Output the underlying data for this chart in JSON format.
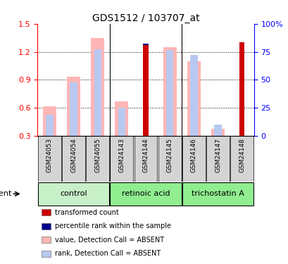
{
  "title": "GDS1512 / 103707_at",
  "samples": [
    "GSM24053",
    "GSM24054",
    "GSM24055",
    "GSM24143",
    "GSM24144",
    "GSM24145",
    "GSM24146",
    "GSM24147",
    "GSM24148"
  ],
  "transformed_count": [
    null,
    null,
    null,
    null,
    1.27,
    null,
    null,
    null,
    1.3
  ],
  "percentile_rank_val": [
    null,
    null,
    null,
    null,
    1.285,
    null,
    null,
    null,
    1.305
  ],
  "value_absent": [
    0.62,
    0.93,
    1.35,
    0.67,
    null,
    1.25,
    1.1,
    0.38,
    null
  ],
  "rank_absent": [
    0.53,
    0.87,
    1.23,
    0.6,
    null,
    1.22,
    1.17,
    0.42,
    null
  ],
  "ylim_left": [
    0.3,
    1.5
  ],
  "ylim_right": [
    0,
    100
  ],
  "yticks_left": [
    0.3,
    0.6,
    0.9,
    1.2,
    1.5
  ],
  "yticks_right": [
    0,
    25,
    50,
    75,
    100
  ],
  "group_boundaries": [
    2.5,
    5.5
  ],
  "group_info": [
    {
      "name": "control",
      "start": 0,
      "end": 2,
      "color": "#c8f0c8"
    },
    {
      "name": "retinoic acid",
      "start": 3,
      "end": 5,
      "color": "#90ee90"
    },
    {
      "name": "trichostatin A",
      "start": 6,
      "end": 8,
      "color": "#90ee90"
    }
  ],
  "colors": {
    "transformed_count": "#cc0000",
    "percentile_rank": "#00008b",
    "value_absent": "#ffb6b6",
    "rank_absent": "#b8c8f0",
    "sample_box": "#d4d4d4",
    "background": "#ffffff"
  },
  "legend_items": [
    {
      "color": "#cc0000",
      "label": "transformed count"
    },
    {
      "color": "#00008b",
      "label": "percentile rank within the sample"
    },
    {
      "color": "#ffb6b6",
      "label": "value, Detection Call = ABSENT"
    },
    {
      "color": "#b8c8f0",
      "label": "rank, Detection Call = ABSENT"
    }
  ]
}
